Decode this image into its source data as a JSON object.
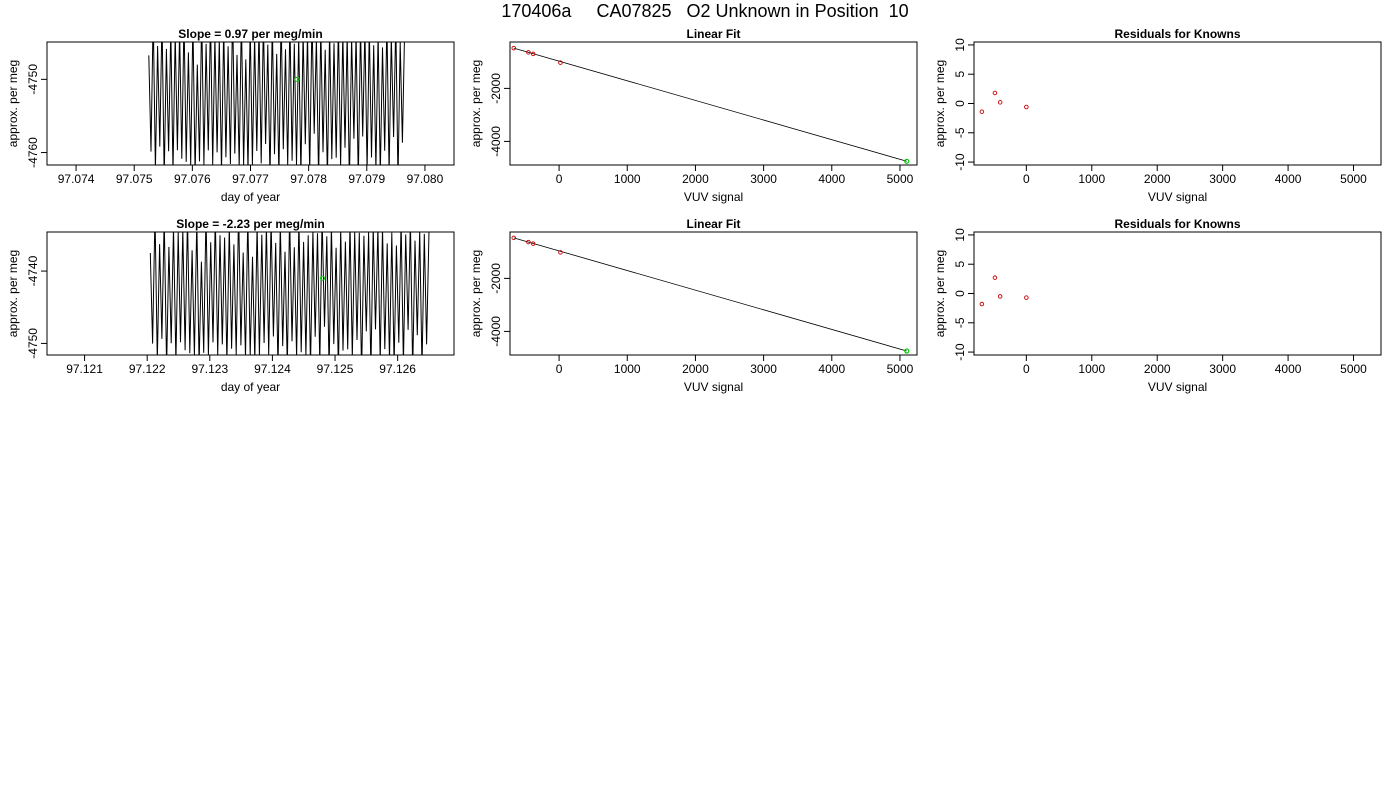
{
  "title": "170406a     CA07825   O2 Unknown in Position  10",
  "colors": {
    "axis": "#000000",
    "trace": "#000000",
    "known": "#cc0000",
    "unknown": "#00cc00"
  },
  "chart_data": [
    {
      "id": "p1",
      "type": "line",
      "title": "Slope =  0.97  per meg/min",
      "xlabel": "day of year",
      "ylabel": "approx. per meg",
      "xlim": [
        97.0735,
        97.0805
      ],
      "ylim": [
        -4761.7,
        -4744.9
      ],
      "xticks": [
        97.074,
        97.075,
        97.076,
        97.077,
        97.078,
        97.079,
        97.08
      ],
      "xtick_labels": [
        "97.074",
        "97.075",
        "97.076",
        "97.077",
        "97.078",
        "97.079",
        "97.080"
      ],
      "yticks": [
        -4760,
        -4750
      ],
      "ytick_labels": [
        "-4760",
        "-4750"
      ],
      "trace": {
        "x_start": 97.07525,
        "x_end": 97.07965,
        "y_min": -4763,
        "y_max": -4742,
        "cycles": 58
      },
      "highlight": {
        "x": 97.0778,
        "y": -4750
      }
    },
    {
      "id": "p2",
      "type": "scatter",
      "title": "Linear Fit",
      "xlabel": "VUV signal",
      "ylabel": "approx. per meg",
      "xlim": [
        -720,
        5250
      ],
      "ylim": [
        -4890,
        -250
      ],
      "xticks": [
        0,
        1000,
        2000,
        3000,
        4000,
        5000
      ],
      "xtick_labels": [
        "0",
        "1000",
        "2000",
        "3000",
        "4000",
        "5000"
      ],
      "yticks": [
        -4000,
        -2000
      ],
      "ytick_labels": [
        "-4000",
        "-2000"
      ],
      "points": [
        {
          "x": -665,
          "y": -480
        },
        {
          "x": -450,
          "y": -640
        },
        {
          "x": -380,
          "y": -700
        },
        {
          "x": 20,
          "y": -1030
        }
      ],
      "fit_line": {
        "x": [
          -665,
          5100
        ],
        "y": [
          -480,
          -4750
        ]
      },
      "unknown": {
        "x": 5100,
        "y": -4750
      }
    },
    {
      "id": "p3",
      "type": "scatter",
      "title": "Residuals for Knowns",
      "xlabel": "VUV signal",
      "ylabel": "approx. per meg",
      "xlim": [
        -800,
        5420
      ],
      "ylim": [
        -10.5,
        10.5
      ],
      "xticks": [
        0,
        1000,
        2000,
        3000,
        4000,
        5000
      ],
      "xtick_labels": [
        "0",
        "1000",
        "2000",
        "3000",
        "4000",
        "5000"
      ],
      "yticks": [
        -10,
        -5,
        0,
        5,
        10
      ],
      "ytick_labels": [
        "-10",
        "-5",
        "0",
        "5",
        "10"
      ],
      "points": [
        {
          "x": -680,
          "y": -1.4
        },
        {
          "x": -480,
          "y": 1.8
        },
        {
          "x": -400,
          "y": 0.2
        },
        {
          "x": 0,
          "y": -0.6
        }
      ]
    },
    {
      "id": "p4",
      "type": "line",
      "title": "Slope =  -2.23  per meg/min",
      "xlabel": "day of year",
      "ylabel": "approx. per meg",
      "xlim": [
        97.1204,
        97.1269
      ],
      "ylim": [
        -4751.6,
        -4734.6
      ],
      "xticks": [
        97.121,
        97.122,
        97.123,
        97.124,
        97.125,
        97.126
      ],
      "xtick_labels": [
        "97.121",
        "97.122",
        "97.123",
        "97.124",
        "97.125",
        "97.126"
      ],
      "yticks": [
        -4750,
        -4740
      ],
      "ytick_labels": [
        "-4750",
        "-4740"
      ],
      "trace": {
        "x_start": 97.12205,
        "x_end": 97.1265,
        "y_min": -4753,
        "y_max": -4733,
        "cycles": 60
      },
      "highlight": {
        "x": 97.1248,
        "y": -4741
      }
    },
    {
      "id": "p5",
      "type": "scatter",
      "title": "Linear Fit",
      "xlabel": "VUV signal",
      "ylabel": "approx. per meg",
      "xlim": [
        -720,
        5250
      ],
      "ylim": [
        -4890,
        -250
      ],
      "xticks": [
        0,
        1000,
        2000,
        3000,
        4000,
        5000
      ],
      "xtick_labels": [
        "0",
        "1000",
        "2000",
        "3000",
        "4000",
        "5000"
      ],
      "yticks": [
        -4000,
        -2000
      ],
      "ytick_labels": [
        "-4000",
        "-2000"
      ],
      "points": [
        {
          "x": -665,
          "y": -470
        },
        {
          "x": -450,
          "y": -630
        },
        {
          "x": -380,
          "y": -690
        },
        {
          "x": 20,
          "y": -1020
        }
      ],
      "fit_line": {
        "x": [
          -665,
          5100
        ],
        "y": [
          -470,
          -4740
        ]
      },
      "unknown": {
        "x": 5100,
        "y": -4740
      }
    },
    {
      "id": "p6",
      "type": "scatter",
      "title": "Residuals for Knowns",
      "xlabel": "VUV signal",
      "ylabel": "approx. per meg",
      "xlim": [
        -800,
        5420
      ],
      "ylim": [
        -10.5,
        10.5
      ],
      "xticks": [
        0,
        1000,
        2000,
        3000,
        4000,
        5000
      ],
      "xtick_labels": [
        "0",
        "1000",
        "2000",
        "3000",
        "4000",
        "5000"
      ],
      "yticks": [
        -10,
        -5,
        0,
        5,
        10
      ],
      "ytick_labels": [
        "-10",
        "-5",
        "0",
        "5",
        "10"
      ],
      "points": [
        {
          "x": -680,
          "y": -1.8
        },
        {
          "x": -480,
          "y": 2.7
        },
        {
          "x": -400,
          "y": -0.5
        },
        {
          "x": 0,
          "y": -0.7
        }
      ]
    }
  ]
}
